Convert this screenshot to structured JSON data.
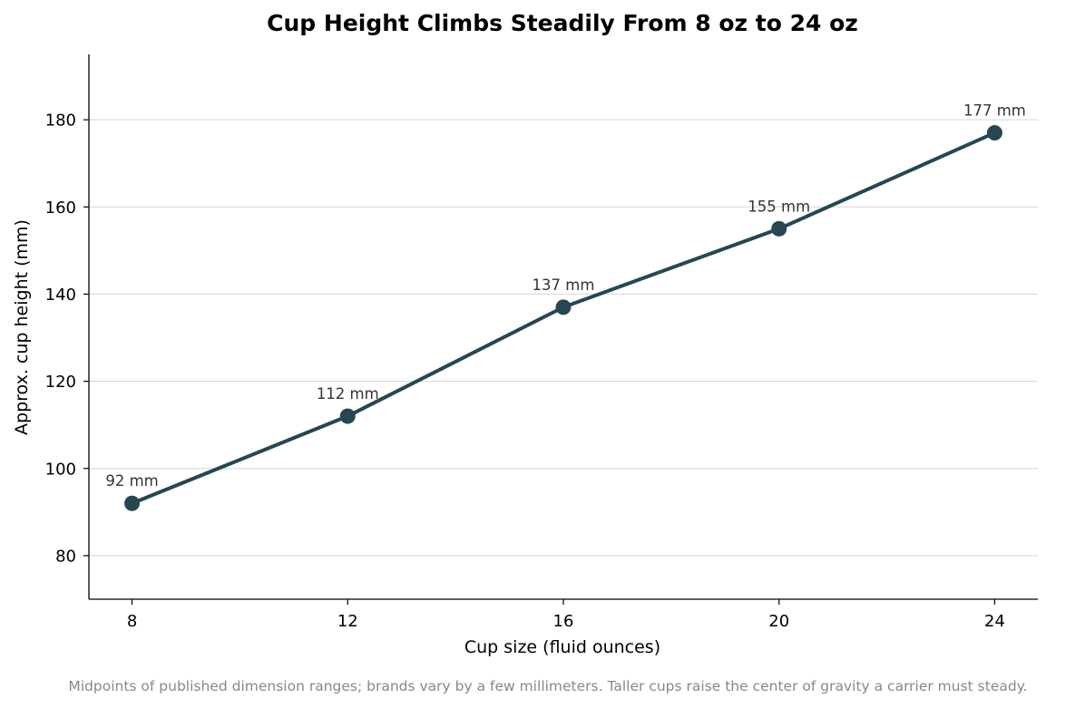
{
  "chart_data": {
    "type": "line",
    "title": "Cup Height Climbs Steadily From 8 oz to 24 oz",
    "xlabel": "Cup size (fluid ounces)",
    "ylabel": "Approx. cup height (mm)",
    "x": [
      8,
      12,
      16,
      20,
      24
    ],
    "xticks": [
      "8",
      "12",
      "16",
      "20",
      "24"
    ],
    "series": [
      {
        "values": [
          92,
          112,
          137,
          155,
          177
        ]
      }
    ],
    "data_labels": [
      "92 mm",
      "112 mm",
      "137 mm",
      "155 mm",
      "177 mm"
    ],
    "yticks": [
      80,
      100,
      120,
      140,
      160,
      180
    ],
    "xlim": [
      7.2,
      24.8
    ],
    "ylim": [
      70,
      195
    ],
    "grid": "y",
    "legend": "none",
    "caption": "Midpoints of published dimension ranges; brands vary by a few millimeters. Taller cups raise the center of gravity a carrier must steady.",
    "colors": {
      "line": "#264653",
      "grid": "#dddddd",
      "axis": "#000000"
    }
  }
}
